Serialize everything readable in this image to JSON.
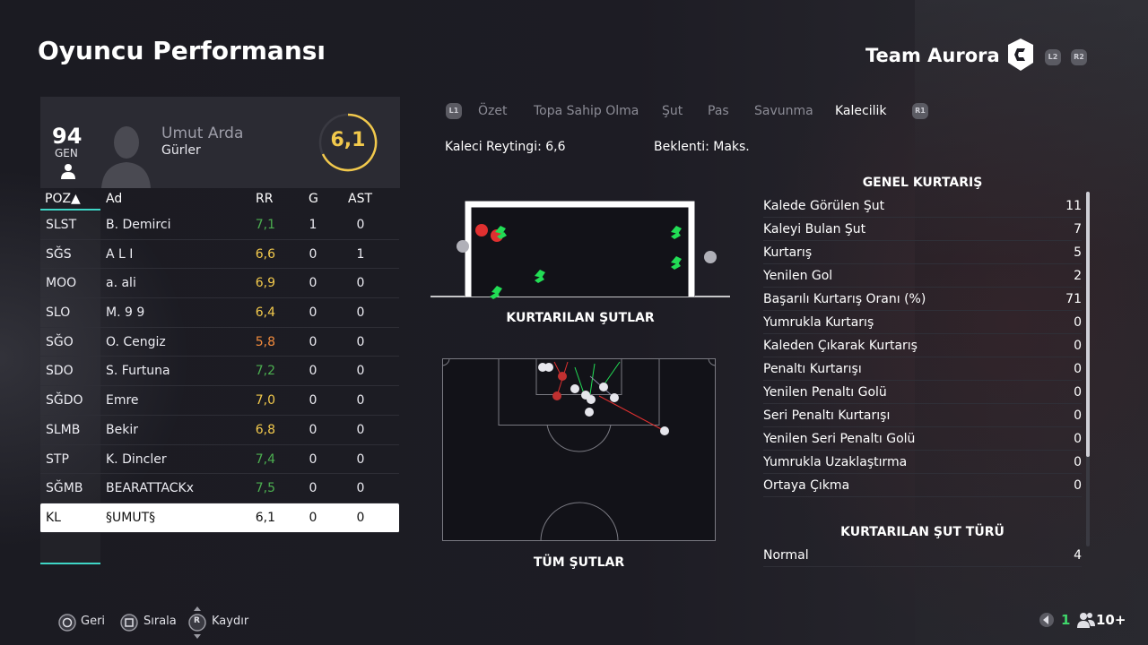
{
  "header": {
    "title": "Oyuncu Performansı",
    "team_name": "Team Aurora",
    "l2": "L2",
    "r2": "R2"
  },
  "player": {
    "overall": "94",
    "overall_label": "GEN",
    "first_name": "Umut Arda",
    "last_name": "Gürler",
    "rating": "6,1"
  },
  "table": {
    "headers": {
      "poz": "POZ▲",
      "ad": "Ad",
      "rr": "RR",
      "g": "G",
      "ast": "AST"
    },
    "rows": [
      {
        "poz": "SLST",
        "ad": "B. Demirci",
        "rr": "7,1",
        "g": "1",
        "ast": "0",
        "rr_color": "#4caf50"
      },
      {
        "poz": "SĞS",
        "ad": "A L I",
        "rr": "6,6",
        "g": "0",
        "ast": "1",
        "rr_color": "#f2c94c"
      },
      {
        "poz": "MOO",
        "ad": "a. ali",
        "rr": "6,9",
        "g": "0",
        "ast": "0",
        "rr_color": "#f2c94c"
      },
      {
        "poz": "SLO",
        "ad": "M. 9 9",
        "rr": "6,4",
        "g": "0",
        "ast": "0",
        "rr_color": "#f2c94c"
      },
      {
        "poz": "SĞO",
        "ad": "O. Cengiz",
        "rr": "5,8",
        "g": "0",
        "ast": "0",
        "rr_color": "#f08a3c"
      },
      {
        "poz": "SDO",
        "ad": "S. Furtuna",
        "rr": "7,2",
        "g": "0",
        "ast": "0",
        "rr_color": "#4caf50"
      },
      {
        "poz": "SĞDO",
        "ad": "Emre",
        "rr": "7,0",
        "g": "0",
        "ast": "0",
        "rr_color": "#f2c94c"
      },
      {
        "poz": "SLMB",
        "ad": "Bekir",
        "rr": "6,8",
        "g": "0",
        "ast": "0",
        "rr_color": "#f2c94c"
      },
      {
        "poz": "STP",
        "ad": "K. Dincler",
        "rr": "7,4",
        "g": "0",
        "ast": "0",
        "rr_color": "#4caf50"
      },
      {
        "poz": "SĞMB",
        "ad": "BEARATTACKx",
        "rr": "7,5",
        "g": "0",
        "ast": "0",
        "rr_color": "#4caf50"
      },
      {
        "poz": "KL",
        "ad": "§UMUT§",
        "rr": "6,1",
        "g": "0",
        "ast": "0",
        "rr_color": "#111111",
        "selected": true
      }
    ]
  },
  "tabs": {
    "l1": "L1",
    "r1": "R1",
    "items": [
      "Özet",
      "Topa Sahip Olma",
      "Şut",
      "Pas",
      "Savunma",
      "Kalecilik"
    ],
    "active": "Kalecilik"
  },
  "summary": {
    "gk_rating": "Kaleci Reytingi: 6,6",
    "expectation": "Beklenti: Maks."
  },
  "charts": {
    "saved_label": "KURTARILAN ŞUTLAR",
    "all_label": "TÜM ŞUTLAR"
  },
  "stats": {
    "title": "GENEL KURTARIŞ",
    "rows": [
      {
        "label": "Kalede Görülen Şut",
        "value": "11"
      },
      {
        "label": "Kaleyi Bulan Şut",
        "value": "7"
      },
      {
        "label": "Kurtarış",
        "value": "5"
      },
      {
        "label": "Yenilen Gol",
        "value": "2"
      },
      {
        "label": "Başarılı Kurtarış Oranı (%)",
        "value": "71"
      },
      {
        "label": "Yumrukla Kurtarış",
        "value": "0"
      },
      {
        "label": "Kaleden Çıkarak Kurtarış",
        "value": "0"
      },
      {
        "label": "Penaltı Kurtarışı",
        "value": "0"
      },
      {
        "label": "Yenilen Penaltı Golü",
        "value": "0"
      },
      {
        "label": "Seri Penaltı Kurtarışı",
        "value": "0"
      },
      {
        "label": "Yenilen Seri Penaltı Golü",
        "value": "0"
      },
      {
        "label": "Yumrukla Uzaklaştırma",
        "value": "0"
      },
      {
        "label": "Ortaya Çıkma",
        "value": "0"
      }
    ],
    "shot_type_title": "KURTARILAN ŞUT TÜRÜ",
    "shot_type_rows": [
      {
        "label": "Normal",
        "value": "4"
      }
    ]
  },
  "footer": {
    "back": "Geri",
    "sort": "Sırala",
    "scroll": "Kaydır",
    "scroll_key": "R",
    "page": "1",
    "players": "10+"
  },
  "colors": {
    "accent": "#3fd6c6",
    "rating_ring": "#f2c94c",
    "save": "#22dd55",
    "goal": "#e03030"
  }
}
